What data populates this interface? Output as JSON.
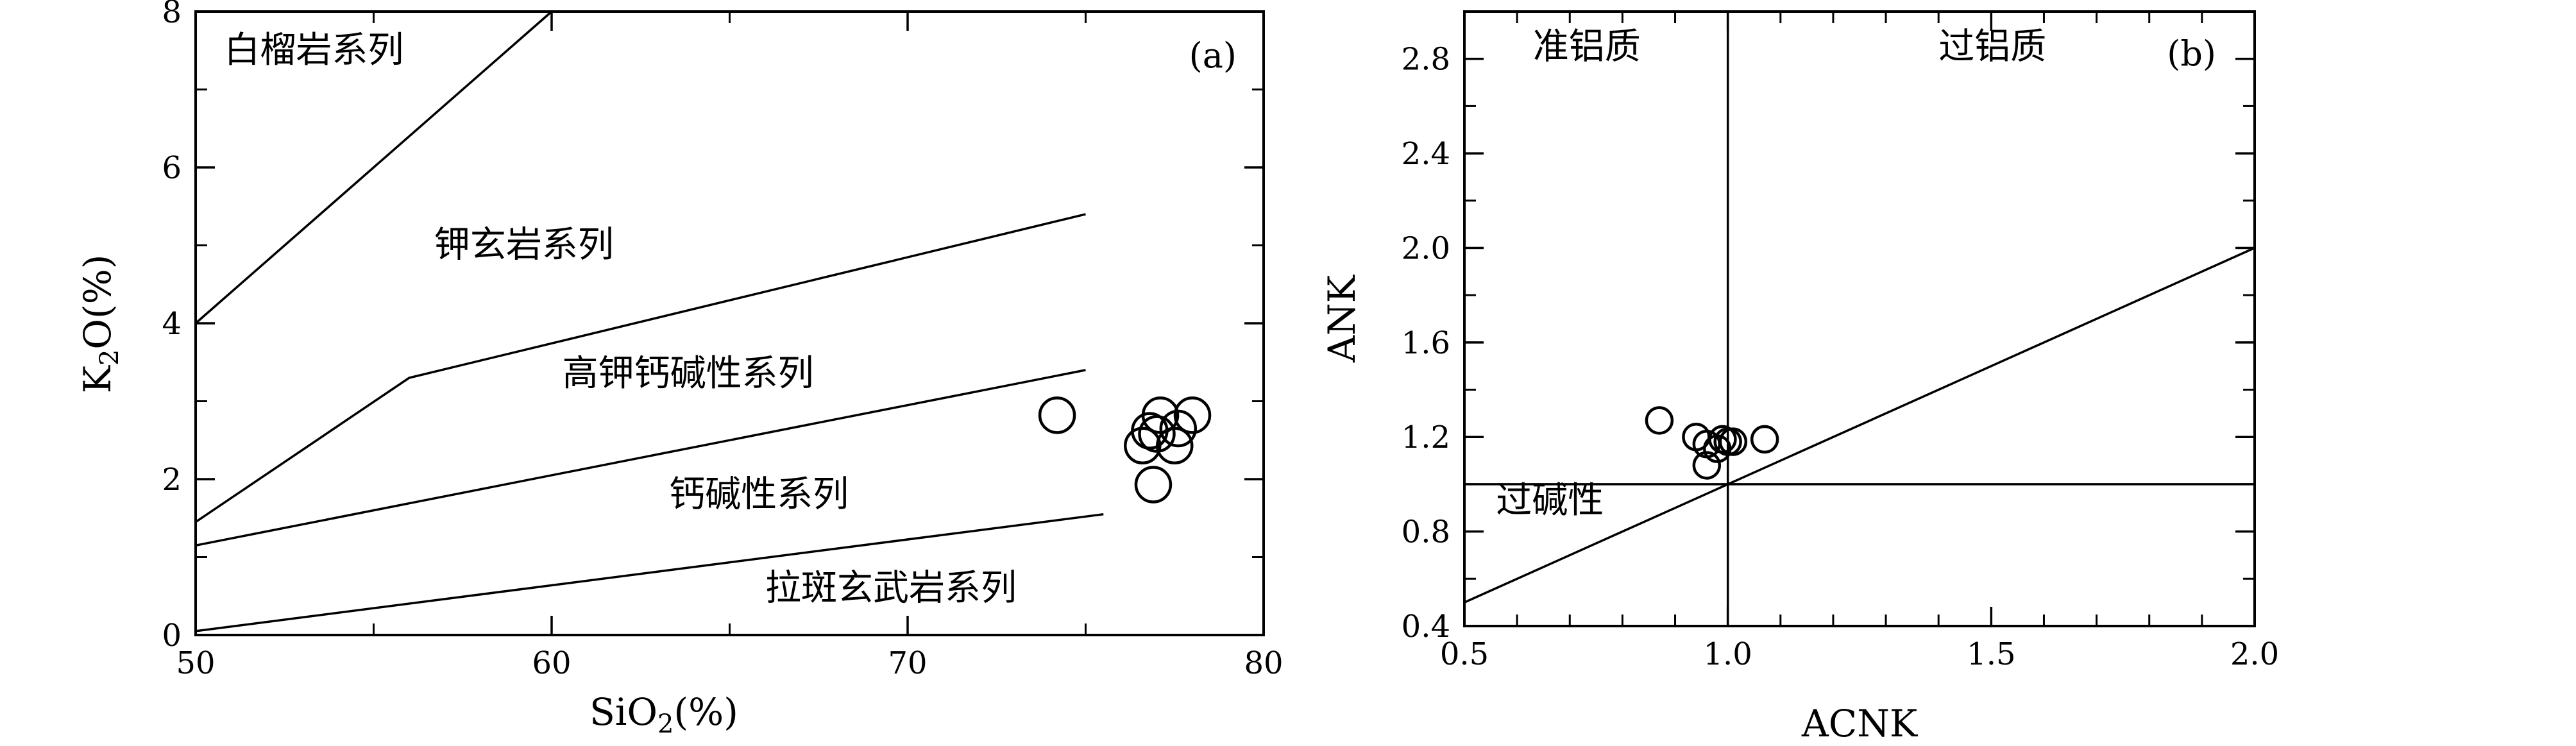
{
  "chart_data": [
    {
      "type": "scatter",
      "panel_label": "(a)",
      "xlabel_main": "SiO",
      "xlabel_sub": "2",
      "xlabel_tail": "(%)",
      "ylabel_main": "K",
      "ylabel_sub": "2",
      "ylabel_tail": "O(%)",
      "xlim": [
        50,
        80
      ],
      "ylim": [
        0,
        8
      ],
      "x_ticks": [
        50,
        60,
        70,
        80
      ],
      "y_ticks": [
        0,
        2,
        4,
        6,
        8
      ],
      "grid": false,
      "lines": [
        {
          "points": [
            [
              50,
              4.0
            ],
            [
              60,
              8.0
            ]
          ]
        },
        {
          "points": [
            [
              50,
              1.45
            ],
            [
              56,
              3.3
            ],
            [
              75,
              5.4
            ]
          ]
        },
        {
          "points": [
            [
              50,
              1.15
            ],
            [
              75,
              3.4
            ]
          ]
        },
        {
          "points": [
            [
              50,
              0.05
            ],
            [
              75.5,
              1.55
            ]
          ]
        }
      ],
      "regions": [
        {
          "text": "白榴岩系列",
          "x": 50.8,
          "y": 7.35
        },
        {
          "text": "钾玄岩系列",
          "x": 56.7,
          "y": 4.85
        },
        {
          "text": "高钾钙碱性系列",
          "x": 60.3,
          "y": 3.2
        },
        {
          "text": "钙碱性系列",
          "x": 63.3,
          "y": 1.65
        },
        {
          "text": "拉斑玄武岩系列",
          "x": 66.0,
          "y": 0.45
        }
      ],
      "points": [
        {
          "x": 74.2,
          "y": 2.82
        },
        {
          "x": 76.8,
          "y": 2.62
        },
        {
          "x": 77.1,
          "y": 2.82
        },
        {
          "x": 77.6,
          "y": 2.65
        },
        {
          "x": 78.0,
          "y": 2.82
        },
        {
          "x": 76.6,
          "y": 2.43
        },
        {
          "x": 77.5,
          "y": 2.43
        },
        {
          "x": 77.0,
          "y": 2.58
        },
        {
          "x": 76.9,
          "y": 1.93
        }
      ]
    },
    {
      "type": "scatter",
      "panel_label": "(b)",
      "xlabel": "ACNK",
      "ylabel": "ANK",
      "xlim": [
        0.5,
        2.0
      ],
      "ylim": [
        0.4,
        3.0
      ],
      "x_ticks": [
        "0.5",
        "1.0",
        "1.5",
        "2.0"
      ],
      "y_ticks": [
        "0.4",
        "0.8",
        "1.2",
        "1.6",
        "2.0",
        "2.4",
        "2.8"
      ],
      "grid": false,
      "lines": [
        {
          "points": [
            [
              1.0,
              0.4
            ],
            [
              1.0,
              3.0
            ]
          ]
        },
        {
          "points": [
            [
              0.5,
              1.0
            ],
            [
              2.0,
              1.0
            ]
          ]
        },
        {
          "points": [
            [
              0.5,
              0.5
            ],
            [
              2.0,
              2.0
            ]
          ]
        }
      ],
      "regions": [
        {
          "text": "准铝质",
          "x": 0.63,
          "y": 2.8
        },
        {
          "text": "过铝质",
          "x": 1.4,
          "y": 2.8
        },
        {
          "text": "过碱性",
          "x": 0.56,
          "y": 0.88
        }
      ],
      "points": [
        {
          "x": 0.87,
          "y": 1.27
        },
        {
          "x": 0.94,
          "y": 1.2
        },
        {
          "x": 0.96,
          "y": 1.17
        },
        {
          "x": 0.98,
          "y": 1.15
        },
        {
          "x": 0.99,
          "y": 1.19
        },
        {
          "x": 1.0,
          "y": 1.18
        },
        {
          "x": 1.01,
          "y": 1.18
        },
        {
          "x": 0.96,
          "y": 1.08
        },
        {
          "x": 1.07,
          "y": 1.19
        }
      ]
    }
  ]
}
